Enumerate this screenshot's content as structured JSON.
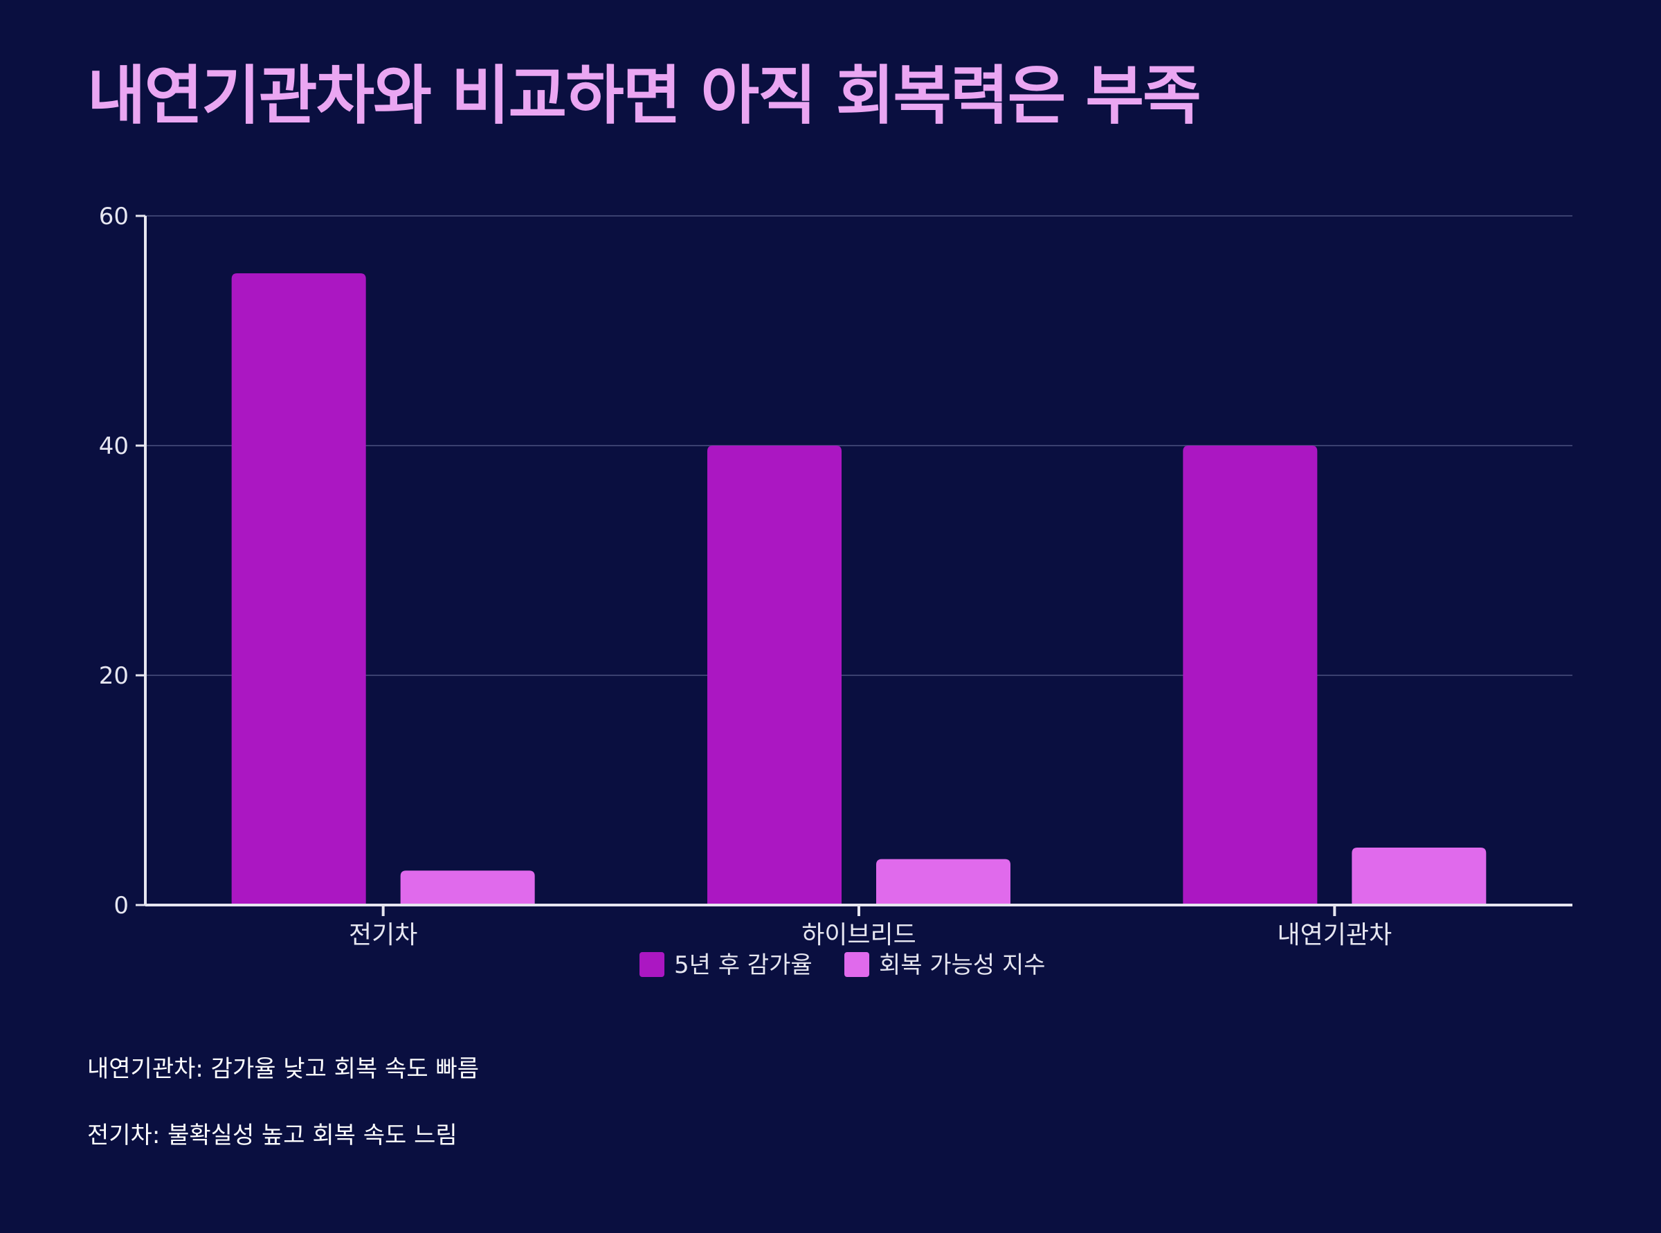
{
  "title": "내연기관차와 비교하면 아직 회복력은 부족",
  "colors": {
    "background": "#0a0f40",
    "title": "#eaa6f2",
    "series_1": "#ab17c2",
    "series_2": "#e06aec",
    "axis": "#e6e6f0",
    "grid": "#3b4170"
  },
  "chart_data": {
    "type": "bar",
    "categories": [
      "전기차",
      "하이브리드",
      "내연기관차"
    ],
    "series": [
      {
        "name": "5년 후 감가율",
        "values": [
          55,
          40,
          40
        ],
        "color": "#ab17c2"
      },
      {
        "name": "회복 가능성 지수",
        "values": [
          3,
          4,
          5
        ],
        "color": "#e06aec"
      }
    ],
    "ylim": [
      0,
      60
    ],
    "yticks": [
      0,
      20,
      40,
      60
    ],
    "grid": true,
    "legend_position": "bottom-center"
  },
  "notes": [
    "내연기관차: 감가율 낮고 회복 속도 빠름",
    "전기차: 불확실성 높고 회복 속도 느림"
  ]
}
